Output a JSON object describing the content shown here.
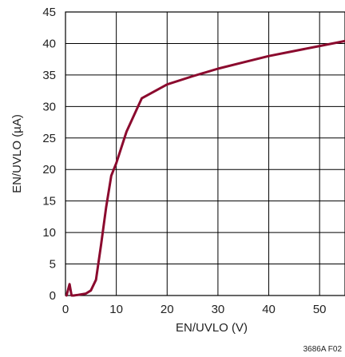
{
  "chart_data": {
    "type": "line",
    "xlabel": "EN/UVLO (V)",
    "ylabel": "EN/UVLO (µA)",
    "xlim": [
      0,
      55
    ],
    "ylim": [
      0,
      45
    ],
    "xticks": [
      "0",
      "10",
      "20",
      "30",
      "40",
      "50"
    ],
    "yticks": [
      "0",
      "5",
      "10",
      "15",
      "20",
      "25",
      "30",
      "35",
      "40",
      "45"
    ],
    "grid": true,
    "line_color": "#8b0a2e",
    "series": [
      {
        "x": [
          0.2,
          0.8,
          1.2,
          1.6,
          2.5,
          4,
          5,
          6,
          7,
          8,
          9,
          10,
          12,
          15,
          20,
          25,
          30,
          35,
          40,
          45,
          50,
          55
        ],
        "y": [
          0,
          1.8,
          0,
          0,
          0.1,
          0.3,
          0.8,
          2.5,
          8,
          14,
          19,
          21,
          26,
          31.3,
          33.5,
          34.8,
          36,
          37,
          38,
          38.8,
          39.6,
          40.4
        ]
      }
    ],
    "figure_code": "3686A F02"
  }
}
